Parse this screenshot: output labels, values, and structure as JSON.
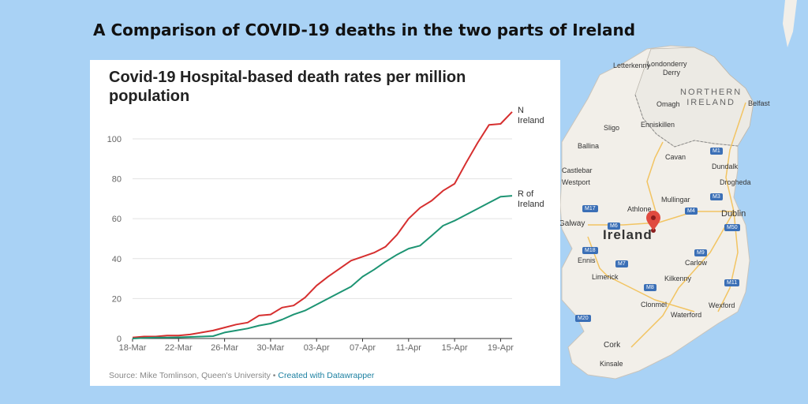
{
  "headline": "A Comparison of COVID-19 deaths in the two parts of Ireland",
  "chart_data": {
    "type": "line",
    "title": "Covid-19 Hospital-based death rates per million population",
    "x": [
      "18-Mar",
      "19-Mar",
      "20-Mar",
      "21-Mar",
      "22-Mar",
      "23-Mar",
      "24-Mar",
      "25-Mar",
      "26-Mar",
      "27-Mar",
      "28-Mar",
      "29-Mar",
      "30-Mar",
      "31-Mar",
      "01-Apr",
      "02-Apr",
      "03-Apr",
      "04-Apr",
      "05-Apr",
      "06-Apr",
      "07-Apr",
      "08-Apr",
      "09-Apr",
      "10-Apr",
      "11-Apr",
      "12-Apr",
      "13-Apr",
      "14-Apr",
      "15-Apr",
      "16-Apr",
      "17-Apr",
      "18-Apr",
      "19-Apr",
      "20-Apr"
    ],
    "xticks": [
      "18-Mar",
      "22-Mar",
      "26-Mar",
      "30-Mar",
      "03-Apr",
      "07-Apr",
      "11-Apr",
      "15-Apr",
      "19-Apr"
    ],
    "ylim": [
      0,
      115
    ],
    "yticks": [
      0,
      20,
      40,
      60,
      80,
      100
    ],
    "grid": true,
    "series": [
      {
        "name": "N Ireland",
        "name_lines": [
          "N",
          "Ireland"
        ],
        "color": "#d62f2f",
        "values": [
          0.5,
          1,
          1,
          1.5,
          1.5,
          2,
          3,
          4,
          5.5,
          7,
          8,
          11.5,
          12,
          15.5,
          16.5,
          20.5,
          26.5,
          31,
          35,
          39,
          41,
          43,
          46,
          52,
          60,
          65.5,
          69,
          74,
          77.5,
          88,
          98,
          107,
          107.5,
          113.5
        ]
      },
      {
        "name": "R of Ireland",
        "name_lines": [
          "R of",
          "Ireland"
        ],
        "color": "#1d9473",
        "values": [
          0,
          0.3,
          0.5,
          0.5,
          0.6,
          0.8,
          1,
          1.2,
          3,
          4,
          5,
          6.5,
          7.5,
          9.5,
          12,
          14,
          17,
          20,
          23,
          26,
          31,
          34.5,
          38.5,
          42,
          45,
          46.5,
          51.5,
          56.5,
          59,
          62,
          65,
          68,
          71,
          71.5
        ]
      }
    ]
  },
  "source": {
    "text": "Source: Mike Tomlinson, Queen's University • ",
    "link": "Created with Datawrapper"
  },
  "map": {
    "country_label": "Ireland",
    "region_label_lines": [
      "NORTHERN",
      "IRELAND"
    ],
    "places": [
      "Letterkenny",
      "Londonderry",
      "Derry",
      "Omagh",
      "Belfast",
      "Enniskillen",
      "Sligo",
      "Cavan",
      "Dundalk",
      "Drogheda",
      "Ballina",
      "Castlebar",
      "Westport",
      "Mullingar",
      "Athlone",
      "Dublin",
      "Galway",
      "Ennis",
      "Limerick",
      "Kilkenny",
      "Carlow",
      "Clonmel",
      "Waterford",
      "Wexford",
      "Cork",
      "Kinsale"
    ],
    "road_shields": [
      "M17",
      "M4",
      "M3",
      "M50",
      "M6",
      "M18",
      "M7",
      "M9",
      "M11",
      "M8",
      "M1",
      "M20"
    ]
  }
}
